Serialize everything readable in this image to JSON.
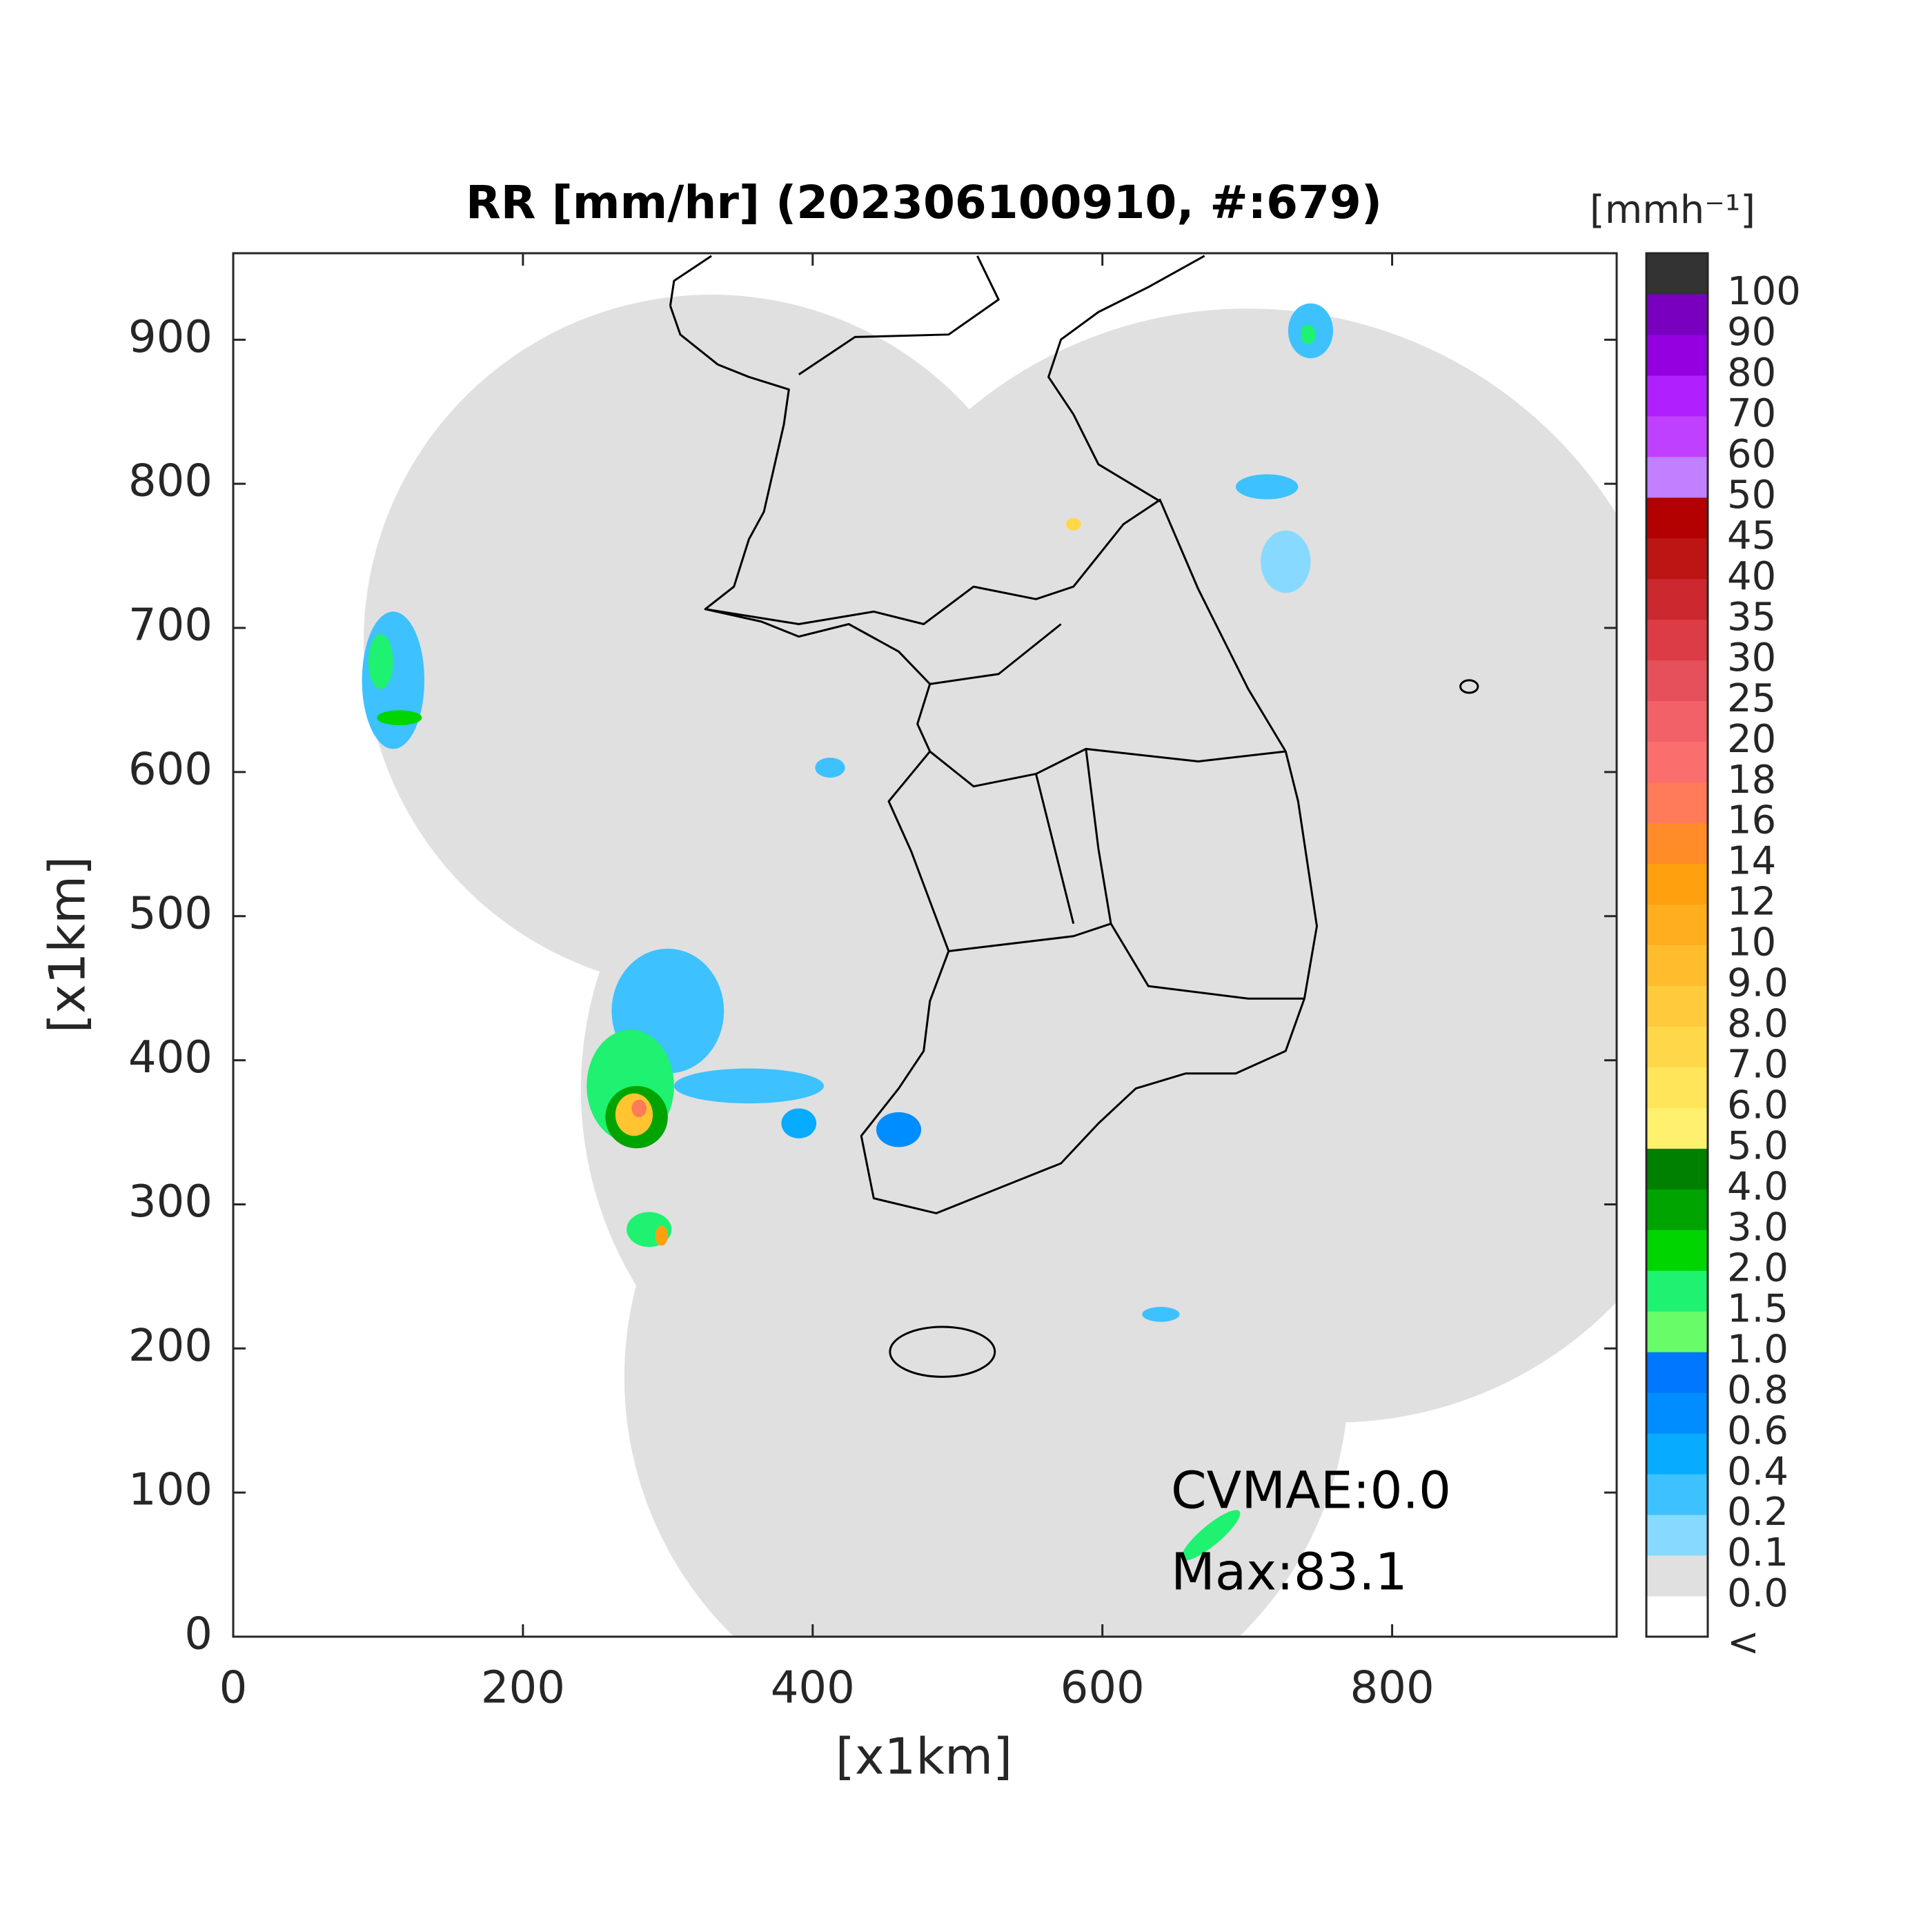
{
  "chart_data": {
    "type": "map",
    "title": "RR [mm/hr] (202306100910, #:679)",
    "xlabel": "[x1km]",
    "ylabel": "[x1km]",
    "xlim": [
      0,
      955
    ],
    "ylim": [
      0,
      960
    ],
    "xticks": [
      0,
      200,
      400,
      600,
      800
    ],
    "yticks": [
      0,
      100,
      200,
      300,
      400,
      500,
      600,
      700,
      800,
      900
    ],
    "colorbar": {
      "title": "[mmh⁻¹]",
      "labels": [
        "<",
        "0.0",
        "0.1",
        "0.2",
        "0.4",
        "0.6",
        "0.8",
        "1.0",
        "1.5",
        "2.0",
        "3.0",
        "4.0",
        "5.0",
        "6.0",
        "7.0",
        "8.0",
        "9.0",
        "10",
        "12",
        "14",
        "16",
        "18",
        "20",
        "25",
        "30",
        "35",
        "40",
        "45",
        "50",
        "60",
        "70",
        "80",
        "90",
        "100"
      ],
      "colors": [
        "#ffffff",
        "#e0e0e0",
        "#87d9ff",
        "#3ec1ff",
        "#07abff",
        "#008dff",
        "#0077ff",
        "#69fc69",
        "#1ef270",
        "#00d500",
        "#00a400",
        "#008000",
        "#fff16e",
        "#ffe55a",
        "#ffd84a",
        "#ffcb3c",
        "#ffbd2e",
        "#ffae1e",
        "#ffa10f",
        "#ff8c28",
        "#ff7b5a",
        "#fa6e6e",
        "#f26168",
        "#e6505a",
        "#dc3c46",
        "#cc2830",
        "#bd1414",
        "#b30000",
        "#c080ff",
        "#c040ff",
        "#b020ff",
        "#9400e0",
        "#7a00c0",
        "#333333"
      ]
    },
    "annotations": [
      "CVMAE:0.0",
      "Max:83.1"
    ]
  }
}
